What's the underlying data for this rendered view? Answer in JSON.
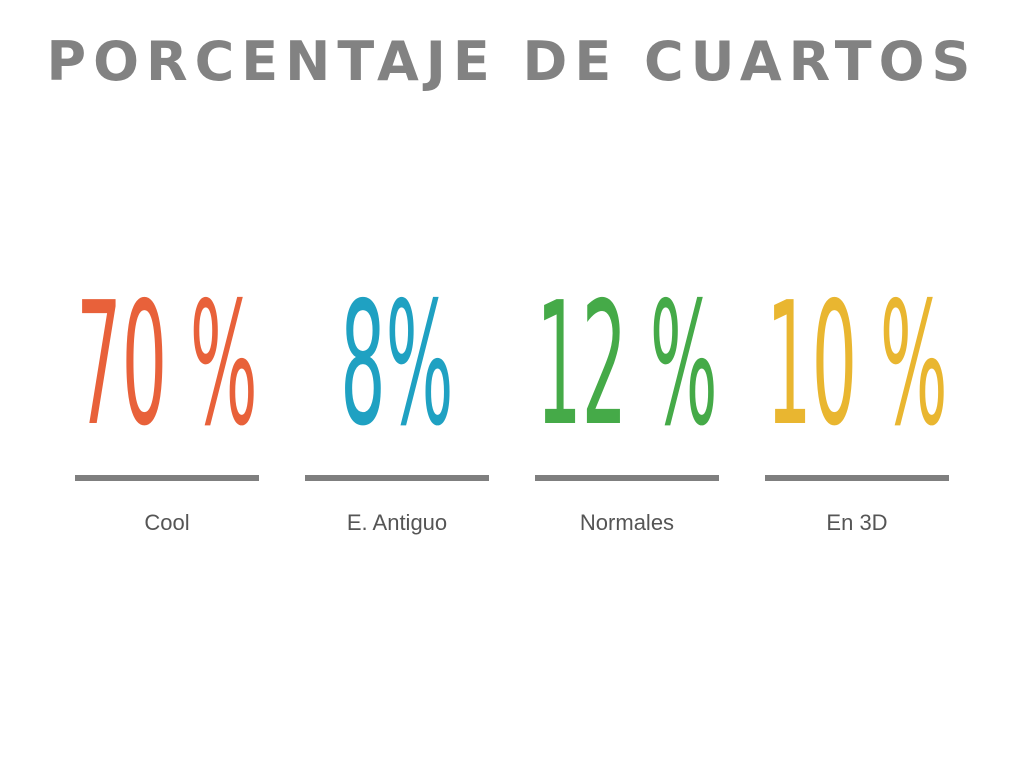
{
  "header": {
    "title": "PORCENTAJE DE CUARTOS"
  },
  "stats": [
    {
      "value": "70 %",
      "label": "Cool",
      "color": "#e8613a"
    },
    {
      "value": "8%",
      "label": "E. Antiguo",
      "color": "#1fa1c2"
    },
    {
      "value": "12 %",
      "label": "Normales",
      "color": "#45aa48"
    },
    {
      "value": "10 %",
      "label": "En 3D",
      "color": "#e9b630"
    }
  ]
}
